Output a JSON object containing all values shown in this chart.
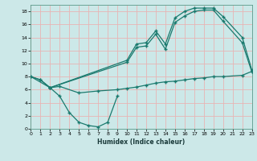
{
  "xlabel": "Humidex (Indice chaleur)",
  "bg_color": "#cce8e8",
  "grid_color": "#e8b4b4",
  "line_color": "#1a7a6e",
  "xlim": [
    0,
    23
  ],
  "ylim": [
    0,
    19
  ],
  "xticks": [
    0,
    1,
    2,
    3,
    4,
    5,
    6,
    7,
    8,
    9,
    10,
    11,
    12,
    13,
    14,
    15,
    16,
    17,
    18,
    19,
    20,
    21,
    22,
    23
  ],
  "yticks": [
    0,
    2,
    4,
    6,
    8,
    10,
    12,
    14,
    16,
    18
  ],
  "line1_x": [
    0,
    1,
    2,
    10,
    11,
    12,
    13,
    14,
    15,
    16,
    17,
    18,
    19,
    20,
    22,
    23
  ],
  "line1_y": [
    8,
    7.5,
    6.3,
    10.5,
    13.0,
    13.2,
    15.0,
    13.0,
    17.0,
    18.0,
    18.5,
    18.5,
    18.5,
    17.2,
    14.0,
    9.0
  ],
  "line2_x": [
    0,
    1,
    2,
    10,
    11,
    12,
    13,
    14,
    15,
    16,
    17,
    18,
    19,
    20,
    22,
    23
  ],
  "line2_y": [
    8,
    7.5,
    6.3,
    10.2,
    12.5,
    12.7,
    14.5,
    12.2,
    16.3,
    17.3,
    18.0,
    18.2,
    18.2,
    16.5,
    13.2,
    8.7
  ],
  "line3_x": [
    0,
    2,
    3,
    5,
    7,
    9,
    10,
    11,
    12,
    13,
    14,
    15,
    16,
    17,
    18,
    19,
    20,
    22,
    23
  ],
  "line3_y": [
    8,
    6.3,
    6.5,
    5.5,
    5.8,
    6.0,
    6.2,
    6.4,
    6.7,
    7.0,
    7.2,
    7.3,
    7.5,
    7.7,
    7.8,
    8.0,
    8.0,
    8.2,
    8.8
  ],
  "line4_x": [
    2,
    3,
    4,
    5,
    6,
    7,
    8,
    9
  ],
  "line4_y": [
    6.3,
    5.0,
    2.5,
    1.0,
    0.5,
    0.3,
    1.0,
    5.0
  ]
}
